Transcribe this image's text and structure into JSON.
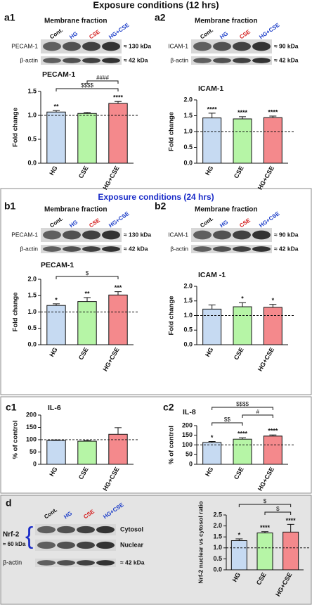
{
  "title": "Exposure conditions (12 hrs)",
  "section_b_title": "Exposure conditions (24 hrs)",
  "lane_colors": [
    "#000000",
    "#1a3cc8",
    "#d41c1c",
    "#1a3cc8"
  ],
  "blots": [
    {
      "panel": "a1",
      "heading": "Membrane fraction",
      "lanes": [
        "Cont.",
        "HG",
        "CSE",
        "HG+CSE"
      ],
      "rows": [
        {
          "name": "PECAM-1",
          "size": "≈ 130 kDa"
        },
        {
          "name": "β-actin",
          "size": "≈ 42 kDa"
        }
      ]
    },
    {
      "panel": "a2",
      "heading": "Membrane fraction",
      "lanes": [
        "Cont.",
        "HG",
        "CSE",
        "HG+CSE"
      ],
      "rows": [
        {
          "name": "ICAM-1",
          "size": "≈ 90 kDa"
        },
        {
          "name": "β-actin",
          "size": "≈ 42 kDa"
        }
      ]
    },
    {
      "panel": "b1",
      "heading": "Membrane fraction",
      "lanes": [
        "Cont.",
        "HG",
        "CSE",
        "HG+CSE"
      ],
      "rows": [
        {
          "name": "PECAM-1",
          "size": "≈ 130 kDa"
        },
        {
          "name": "β-actin",
          "size": "≈ 42 kDa"
        }
      ]
    },
    {
      "panel": "b2",
      "heading": "Membrane fraction",
      "lanes": [
        "Cont.",
        "HG",
        "CSE",
        "HG+CSE"
      ],
      "rows": [
        {
          "name": "ICAM-1",
          "size": "≈ 90 kDa"
        },
        {
          "name": "β-actin",
          "size": "≈ 42 kDa"
        }
      ]
    },
    {
      "panel": "d",
      "lanes": [
        "Cont.",
        "HG",
        "CSE",
        "HG+CSE"
      ],
      "bands": [
        "Cytosol",
        "Nuclear"
      ],
      "rows": [
        {
          "name": "Nrf-2",
          "size": "≈ 60 kDa"
        },
        {
          "name": "β-actin",
          "size": "≈ 42 kDa"
        }
      ]
    }
  ],
  "chart_data": [
    {
      "type": "bar",
      "title": "PECAM-1",
      "y_label": "Fold change",
      "categories": [
        "HG",
        "CSE",
        "HG+CSE"
      ],
      "values": [
        1.07,
        1.04,
        1.25
      ],
      "errors": [
        0.03,
        0.02,
        0.04
      ],
      "colors": [
        "#c6daf2",
        "#b6f5a6",
        "#f4898c"
      ],
      "ylim": [
        0,
        1.5
      ],
      "yticks": [
        {
          "value": 0,
          "label": "0.0"
        },
        {
          "value": 0.5,
          "label": "0.5"
        },
        {
          "value": 1,
          "label": "1.0"
        },
        {
          "value": 1.5,
          "label": "1.5"
        }
      ],
      "reference_line": 1,
      "significance": [
        {
          "index": 0,
          "label": "**"
        },
        {
          "index": 2,
          "label": "****"
        }
      ],
      "comparisons": [
        {
          "from": 0,
          "to": 2,
          "label": "$$$$"
        },
        {
          "from": 1,
          "to": 2,
          "label": "####"
        }
      ]
    },
    {
      "type": "bar",
      "title": "ICAM-1",
      "y_label": "Fold change",
      "categories": [
        "HG",
        "CSE",
        "HG+CSE"
      ],
      "values": [
        1.43,
        1.4,
        1.44
      ],
      "errors": [
        0.15,
        0.07,
        0.05
      ],
      "colors": [
        "#c6daf2",
        "#b6f5a6",
        "#f4898c"
      ],
      "ylim": [
        0,
        2
      ],
      "yticks": [
        {
          "value": 0,
          "label": "0.0"
        },
        {
          "value": 0.5,
          "label": "0.5"
        },
        {
          "value": 1,
          "label": "1.0"
        },
        {
          "value": 1.5,
          "label": "1.5"
        },
        {
          "value": 2,
          "label": "2.0"
        }
      ],
      "reference_line": 1,
      "significance": [
        {
          "index": 0,
          "label": "****"
        },
        {
          "index": 1,
          "label": "****"
        },
        {
          "index": 2,
          "label": "****"
        }
      ]
    },
    {
      "type": "bar",
      "title": "PECAM-1",
      "y_label": "Fold change",
      "categories": [
        "HG",
        "CSE",
        "HG+CSE"
      ],
      "values": [
        1.2,
        1.32,
        1.52
      ],
      "errors": [
        0.05,
        0.12,
        0.1
      ],
      "colors": [
        "#c6daf2",
        "#b6f5a6",
        "#f4898c"
      ],
      "ylim": [
        0,
        2
      ],
      "yticks": [
        {
          "value": 0,
          "label": "0.0"
        },
        {
          "value": 0.5,
          "label": "0.5"
        },
        {
          "value": 1,
          "label": "1.0"
        },
        {
          "value": 1.5,
          "label": "1.5"
        },
        {
          "value": 2,
          "label": "2.0"
        }
      ],
      "reference_line": 1,
      "significance": [
        {
          "index": 0,
          "label": "*"
        },
        {
          "index": 1,
          "label": "**"
        },
        {
          "index": 2,
          "label": "***"
        }
      ],
      "comparisons": [
        {
          "from": 0,
          "to": 2,
          "label": "$"
        }
      ]
    },
    {
      "type": "bar",
      "title": "ICAM -1",
      "y_label": "Fold change",
      "categories": [
        "HG",
        "CSE",
        "HG+CSE"
      ],
      "values": [
        1.22,
        1.3,
        1.28
      ],
      "errors": [
        0.14,
        0.14,
        0.1
      ],
      "colors": [
        "#c6daf2",
        "#b6f5a6",
        "#f4898c"
      ],
      "ylim": [
        0,
        2
      ],
      "yticks": [
        {
          "value": 0,
          "label": "0.0"
        },
        {
          "value": 0.5,
          "label": "0.5"
        },
        {
          "value": 1,
          "label": "1.0"
        },
        {
          "value": 1.5,
          "label": "1.5"
        },
        {
          "value": 2,
          "label": "2.0"
        }
      ],
      "reference_line": 1,
      "significance": [
        {
          "index": 1,
          "label": "*"
        },
        {
          "index": 2,
          "label": "*"
        }
      ]
    },
    {
      "type": "bar",
      "panel": "c1",
      "title": "IL-6",
      "y_label": "% of control",
      "categories": [
        "HG",
        "CSE",
        "HG+CSE"
      ],
      "values": [
        97,
        94,
        122
      ],
      "errors": [
        2,
        2,
        27
      ],
      "colors": [
        "#c6daf2",
        "#b6f5a6",
        "#f4898c"
      ],
      "ylim": [
        0,
        200
      ],
      "yticks": [
        0,
        50,
        100,
        150,
        200
      ],
      "reference_line": 100
    },
    {
      "type": "bar",
      "panel": "c2",
      "title": "IL-8",
      "y_label": "% of control",
      "categories": [
        "HG",
        "CSE",
        "HG+CSE"
      ],
      "values": [
        113,
        130,
        146
      ],
      "errors": [
        5,
        7,
        6
      ],
      "colors": [
        "#c6daf2",
        "#b6f5a6",
        "#f4898c"
      ],
      "ylim": [
        0,
        200
      ],
      "yticks": [
        0,
        50,
        100,
        150,
        200
      ],
      "reference_line": 100,
      "significance": [
        {
          "index": 0,
          "label": "*"
        },
        {
          "index": 1,
          "label": "****"
        },
        {
          "index": 2,
          "label": "****"
        }
      ],
      "comparisons": [
        {
          "from": 0,
          "to": 1,
          "label": "$$"
        },
        {
          "from": 1,
          "to": 2,
          "label": "#"
        },
        {
          "from": 0,
          "to": 2,
          "label": "$$$$"
        }
      ]
    },
    {
      "type": "bar",
      "y_label": "Nrf-2 nuclear vs cytosol ratio",
      "categories": [
        "HG",
        "CSE",
        "HG+CSE"
      ],
      "values": [
        1.33,
        1.68,
        1.72
      ],
      "errors": [
        0.08,
        0.06,
        0.35
      ],
      "colors": [
        "#c6daf2",
        "#b6f5a6",
        "#f4898c"
      ],
      "ylim": [
        0,
        2.5
      ],
      "yticks": [
        {
          "value": 0,
          "label": "0.0"
        },
        {
          "value": 0.5,
          "label": "0.5"
        },
        {
          "value": 1,
          "label": "1.0"
        },
        {
          "value": 1.5,
          "label": "1.5"
        },
        {
          "value": 2,
          "label": "2.0"
        },
        {
          "value": 2.5,
          "label": "2.5"
        }
      ],
      "reference_line": 1,
      "significance": [
        {
          "index": 0,
          "label": "*"
        },
        {
          "index": 1,
          "label": "****"
        },
        {
          "index": 2,
          "label": "****"
        }
      ],
      "comparisons": [
        {
          "from": 1,
          "to": 2,
          "label": "$"
        },
        {
          "from": 0,
          "to": 2,
          "label": "$"
        }
      ]
    }
  ]
}
